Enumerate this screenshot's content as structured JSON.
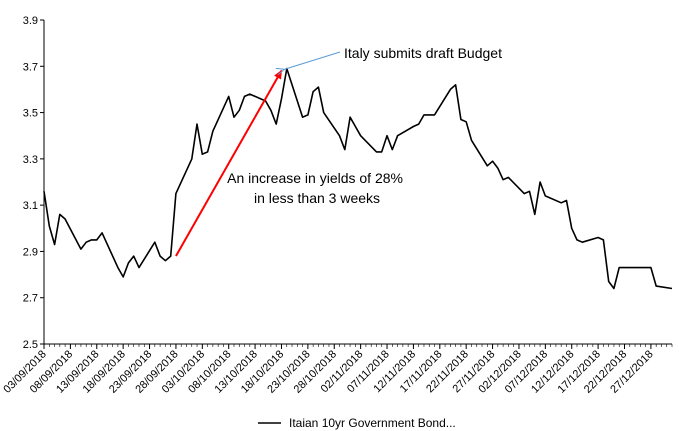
{
  "chart_data": {
    "type": "line",
    "title": "",
    "xlabel": "",
    "ylabel": "",
    "ylim": [
      2.5,
      3.9
    ],
    "yticks": [
      2.5,
      2.7,
      2.9,
      3.1,
      3.3,
      3.5,
      3.7,
      3.9
    ],
    "ytick_labels": [
      "2.5",
      "2.7",
      "2.9",
      "3.1",
      "3.3",
      "3.5",
      "3.7",
      "3.9"
    ],
    "xlim": [
      "2018-09-03",
      "2018-12-31"
    ],
    "xtick_labels": [
      "03/09/2018",
      "08/09/2018",
      "13/09/2018",
      "18/09/2018",
      "23/09/2018",
      "28/09/2018",
      "03/10/2018",
      "08/10/2018",
      "13/10/2018",
      "18/10/2018",
      "23/10/2018",
      "28/10/2018",
      "02/11/2018",
      "07/11/2018",
      "12/11/2018",
      "17/11/2018",
      "22/11/2018",
      "27/11/2018",
      "02/12/2018",
      "07/12/2018",
      "12/12/2018",
      "17/12/2018",
      "22/12/2018",
      "27/12/2018"
    ],
    "xtick_dates": [
      "2018-09-03",
      "2018-09-08",
      "2018-09-13",
      "2018-09-18",
      "2018-09-23",
      "2018-09-28",
      "2018-10-03",
      "2018-10-08",
      "2018-10-13",
      "2018-10-18",
      "2018-10-23",
      "2018-10-28",
      "2018-11-02",
      "2018-11-07",
      "2018-11-12",
      "2018-11-17",
      "2018-11-22",
      "2018-11-27",
      "2018-12-02",
      "2018-12-07",
      "2018-12-12",
      "2018-12-17",
      "2018-12-22",
      "2018-12-27"
    ],
    "grid": false,
    "legend": "bottom",
    "series": [
      {
        "name": "Itaian 10yr Government Bond...",
        "color": "#000000",
        "x": [
          "2018-09-03",
          "2018-09-04",
          "2018-09-05",
          "2018-09-06",
          "2018-09-07",
          "2018-09-10",
          "2018-09-11",
          "2018-09-12",
          "2018-09-13",
          "2018-09-14",
          "2018-09-17",
          "2018-09-18",
          "2018-09-19",
          "2018-09-20",
          "2018-09-21",
          "2018-09-24",
          "2018-09-25",
          "2018-09-26",
          "2018-09-27",
          "2018-09-28",
          "2018-10-01",
          "2018-10-02",
          "2018-10-03",
          "2018-10-04",
          "2018-10-05",
          "2018-10-08",
          "2018-10-09",
          "2018-10-10",
          "2018-10-11",
          "2018-10-12",
          "2018-10-15",
          "2018-10-16",
          "2018-10-17",
          "2018-10-18",
          "2018-10-19",
          "2018-10-22",
          "2018-10-23",
          "2018-10-24",
          "2018-10-25",
          "2018-10-26",
          "2018-10-29",
          "2018-10-30",
          "2018-10-31",
          "2018-11-01",
          "2018-11-02",
          "2018-11-05",
          "2018-11-06",
          "2018-11-07",
          "2018-11-08",
          "2018-11-09",
          "2018-11-12",
          "2018-11-13",
          "2018-11-14",
          "2018-11-15",
          "2018-11-16",
          "2018-11-19",
          "2018-11-20",
          "2018-11-21",
          "2018-11-22",
          "2018-11-23",
          "2018-11-26",
          "2018-11-27",
          "2018-11-28",
          "2018-11-29",
          "2018-11-30",
          "2018-12-03",
          "2018-12-04",
          "2018-12-05",
          "2018-12-06",
          "2018-12-07",
          "2018-12-10",
          "2018-12-11",
          "2018-12-12",
          "2018-12-13",
          "2018-12-14",
          "2018-12-17",
          "2018-12-18",
          "2018-12-19",
          "2018-12-20",
          "2018-12-21",
          "2018-12-24",
          "2018-12-27",
          "2018-12-28",
          "2018-12-31"
        ],
        "y": [
          3.16,
          3.01,
          2.93,
          3.06,
          3.04,
          2.91,
          2.94,
          2.95,
          2.95,
          2.98,
          2.83,
          2.79,
          2.85,
          2.88,
          2.83,
          2.94,
          2.88,
          2.86,
          2.88,
          3.15,
          3.3,
          3.45,
          3.32,
          3.33,
          3.42,
          3.57,
          3.48,
          3.51,
          3.57,
          3.58,
          3.55,
          3.51,
          3.45,
          3.56,
          3.69,
          3.48,
          3.49,
          3.59,
          3.61,
          3.5,
          3.4,
          3.34,
          3.48,
          3.44,
          3.4,
          3.33,
          3.33,
          3.4,
          3.34,
          3.4,
          3.44,
          3.45,
          3.49,
          3.49,
          3.49,
          3.6,
          3.62,
          3.47,
          3.46,
          3.38,
          3.27,
          3.29,
          3.26,
          3.21,
          3.22,
          3.15,
          3.16,
          3.06,
          3.2,
          3.14,
          3.11,
          3.12,
          3.0,
          2.95,
          2.94,
          2.96,
          2.95,
          2.77,
          2.74,
          2.83,
          2.83,
          2.83,
          2.75,
          2.74
        ]
      }
    ],
    "annotations": [
      {
        "text": "Italy submits draft Budget",
        "x": "2018-10-18",
        "y": 3.69
      },
      {
        "lines": [
          "An increase in yields of 28%",
          "in less than 3 weeks"
        ],
        "from": [
          "2018-09-28",
          2.88
        ],
        "to": [
          "2018-10-18",
          3.69
        ],
        "color": "#ff0000"
      }
    ]
  }
}
